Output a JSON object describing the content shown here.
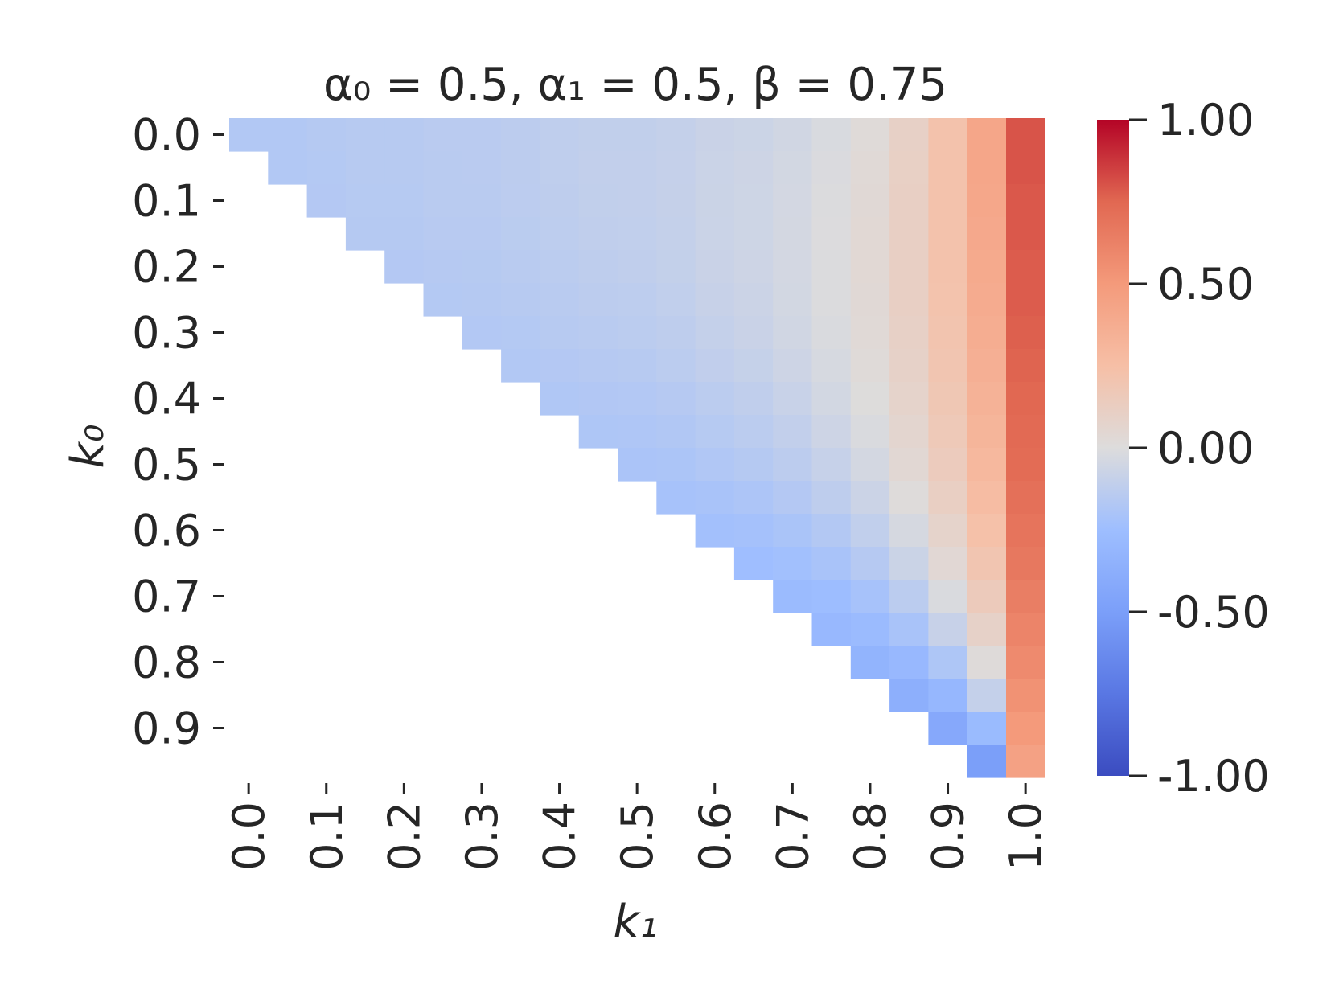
{
  "chart_data": {
    "type": "heatmap",
    "title": "α₀ = 0.5, α₁ = 0.5, β = 0.75",
    "xlabel": "k₁",
    "ylabel": "k₀",
    "x_ticks": [
      "0.0",
      "0.1",
      "0.2",
      "0.3",
      "0.4",
      "0.5",
      "0.6",
      "0.7",
      "0.8",
      "0.9",
      "1.0"
    ],
    "y_ticks": [
      "0.0",
      "0.1",
      "0.2",
      "0.3",
      "0.4",
      "0.5",
      "0.6",
      "0.7",
      "0.8",
      "0.9"
    ],
    "grid": {
      "x_min": 0.0,
      "x_max": 1.0,
      "x_cols": 21,
      "y_min": 0.0,
      "y_max": 0.95,
      "y_rows": 20
    },
    "mask": "cells with k1 < k0 are empty",
    "colormap": "coolwarm",
    "colorbar": {
      "vmin": -1.0,
      "vmax": 1.0,
      "ticks": [
        "1.00",
        "0.50",
        "0.00",
        "-0.50",
        "-1.00"
      ],
      "tick_values": [
        1.0,
        0.5,
        0.0,
        -0.5,
        -1.0
      ]
    },
    "value_model": {
      "description_values_at_k0_0": [
        -0.18,
        -0.17,
        -0.16,
        -0.15,
        -0.14,
        -0.13,
        -0.12,
        -0.11,
        -0.09,
        -0.06,
        -0.04,
        -0.02,
        0.0,
        0.05,
        0.12,
        0.22,
        0.36,
        0.8
      ],
      "top_row_k1": [
        0.0,
        0.05,
        0.1,
        0.15,
        0.2,
        0.25,
        0.3,
        0.35,
        0.4,
        0.45,
        0.5,
        0.55,
        0.6,
        0.65,
        0.7,
        0.75,
        0.8,
        0.85,
        0.9,
        0.95,
        1.0
      ],
      "top_row_values": [
        -0.17,
        -0.17,
        -0.16,
        -0.15,
        -0.15,
        -0.14,
        -0.14,
        -0.13,
        -0.12,
        -0.11,
        -0.11,
        -0.1,
        -0.08,
        -0.07,
        -0.05,
        -0.02,
        0.02,
        0.1,
        0.22,
        0.42,
        0.8
      ],
      "bottom_diag_values": [
        -0.17,
        -0.18,
        -0.19,
        -0.2,
        -0.21,
        -0.22,
        -0.23,
        -0.24,
        -0.26,
        -0.27,
        -0.28,
        -0.3,
        -0.32,
        -0.33,
        -0.35,
        -0.37,
        -0.4,
        -0.43,
        -0.46,
        -0.5
      ],
      "last_col_values_by_row": [
        0.8,
        0.8,
        0.79,
        0.79,
        0.78,
        0.78,
        0.77,
        0.76,
        0.75,
        0.74,
        0.73,
        0.71,
        0.69,
        0.67,
        0.64,
        0.61,
        0.58,
        0.54,
        0.5,
        0.45
      ]
    }
  }
}
